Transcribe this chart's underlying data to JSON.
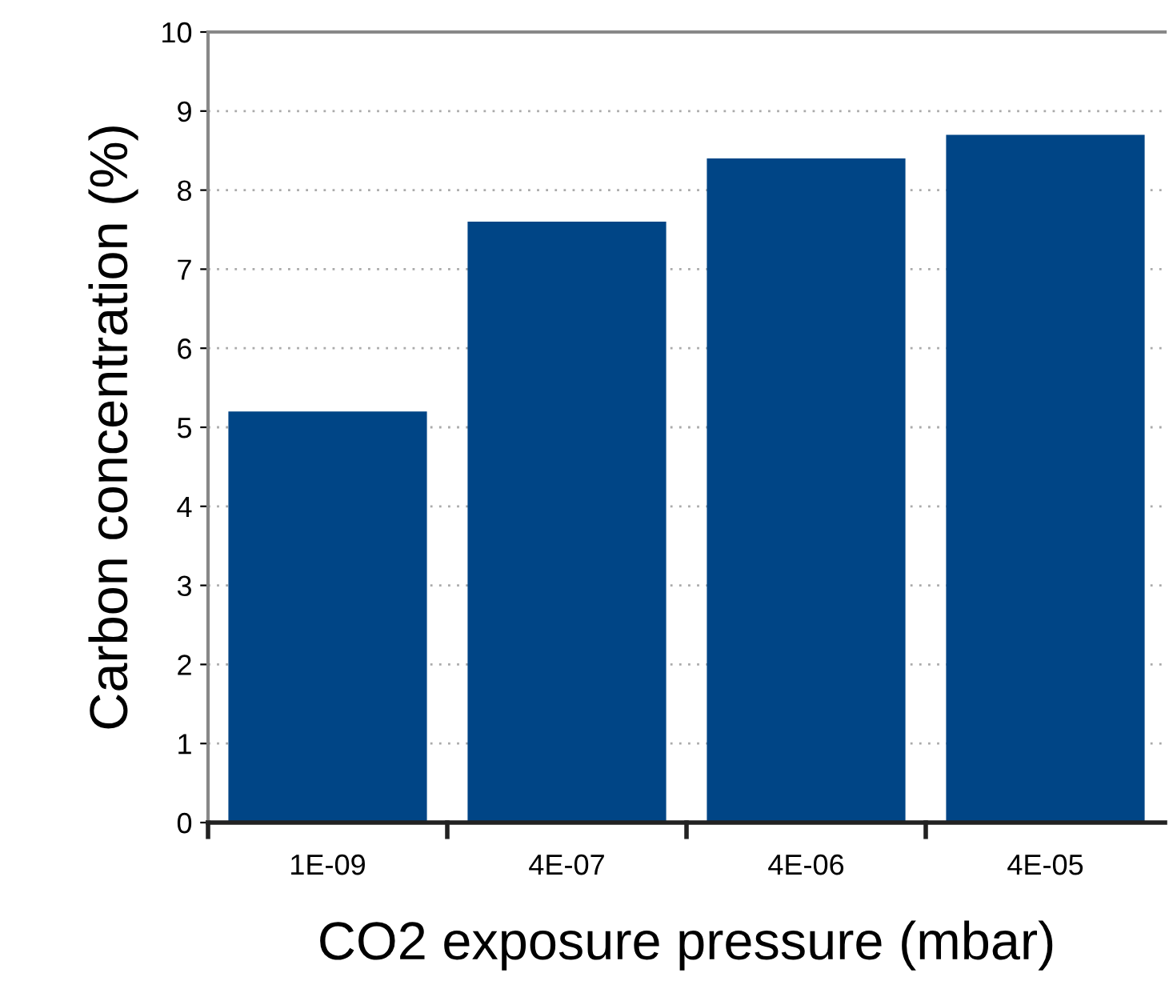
{
  "chart_data": {
    "type": "bar",
    "xlabel": "CO2 exposure pressure (mbar)",
    "ylabel": "Carbon concentration (%)",
    "categories": [
      "1E-09",
      "4E-07",
      "4E-06",
      "4E-05"
    ],
    "values": [
      5.2,
      7.6,
      8.4,
      8.7
    ],
    "color": "#004586",
    "ylim": [
      0,
      10
    ],
    "yticks": [
      0,
      1,
      2,
      3,
      4,
      5,
      6,
      7,
      8,
      9,
      10
    ],
    "grid": "y",
    "legend": false
  }
}
